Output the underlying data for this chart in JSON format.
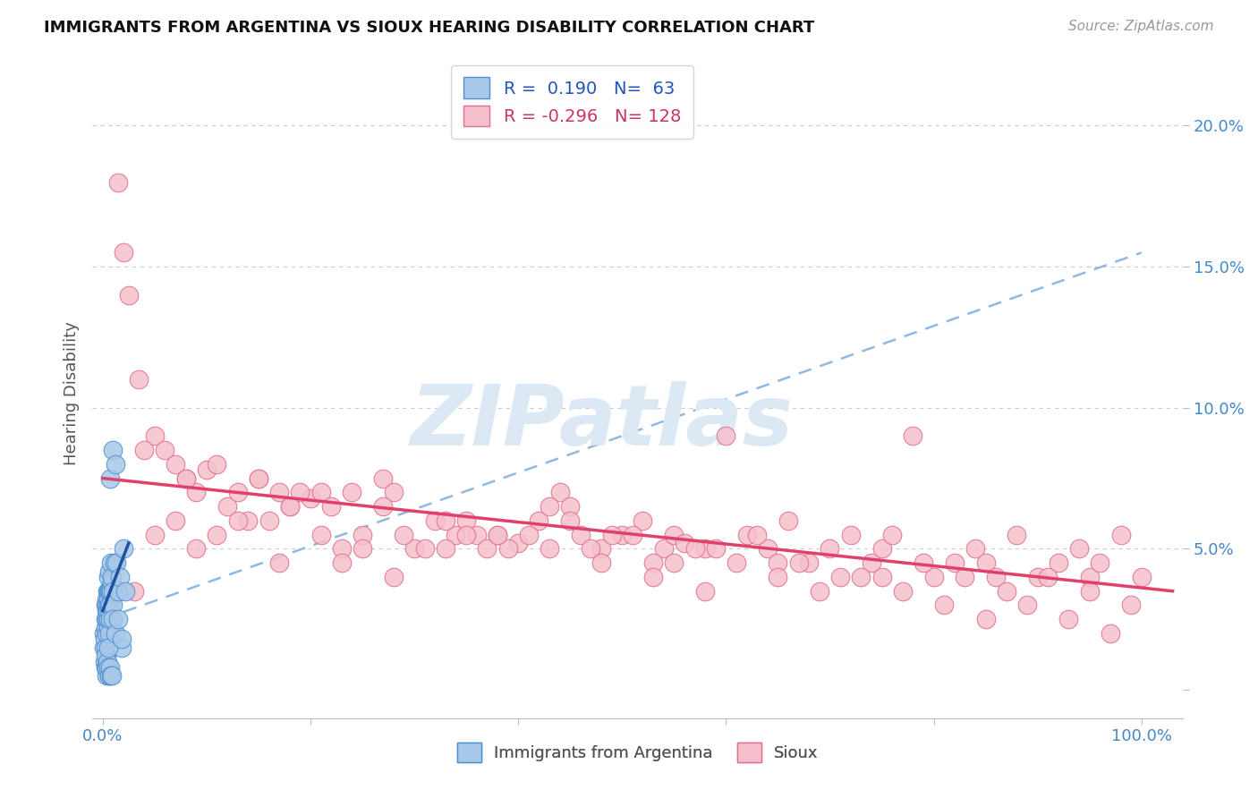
{
  "title": "IMMIGRANTS FROM ARGENTINA VS SIOUX HEARING DISABILITY CORRELATION CHART",
  "source": "Source: ZipAtlas.com",
  "ylabel_label": "Hearing Disability",
  "xlim": [
    -1,
    104
  ],
  "ylim": [
    -1,
    22
  ],
  "x_ticks": [
    0,
    20,
    40,
    60,
    80,
    100
  ],
  "x_tick_labels": [
    "0.0%",
    "",
    "",
    "",
    "",
    "100.0%"
  ],
  "y_ticks": [
    0,
    5,
    10,
    15,
    20
  ],
  "y_tick_labels": [
    "",
    "5.0%",
    "10.0%",
    "15.0%",
    "20.0%"
  ],
  "blue_color": "#A8C8E8",
  "blue_edge_color": "#5090D0",
  "pink_color": "#F5C0CC",
  "pink_edge_color": "#E07090",
  "blue_line_color": "#2050A0",
  "pink_line_color": "#E0406A",
  "blue_dashed_color": "#90B8E0",
  "grid_color": "#CCCCCC",
  "watermark": "ZIPatlas",
  "watermark_color": "#DDE8F5",
  "legend_r_blue": "R =  0.190",
  "legend_n_blue": "N=  63",
  "legend_r_pink": "R = -0.296",
  "legend_n_pink": "N= 128",
  "legend_label_blue": "Immigrants from Argentina",
  "legend_label_pink": "Sioux",
  "blue_x": [
    0.1,
    0.15,
    0.2,
    0.25,
    0.3,
    0.3,
    0.3,
    0.35,
    0.35,
    0.4,
    0.4,
    0.4,
    0.4,
    0.45,
    0.45,
    0.5,
    0.5,
    0.5,
    0.5,
    0.5,
    0.55,
    0.55,
    0.6,
    0.6,
    0.6,
    0.65,
    0.65,
    0.7,
    0.7,
    0.7,
    0.75,
    0.8,
    0.8,
    0.85,
    0.9,
    0.95,
    1.0,
    1.0,
    1.1,
    1.2,
    1.3,
    1.5,
    1.7,
    1.8,
    2.0,
    0.2,
    0.25,
    0.3,
    0.35,
    0.4,
    0.45,
    0.5,
    0.55,
    0.6,
    0.65,
    0.7,
    0.8,
    0.9,
    1.0,
    1.2,
    1.5,
    1.8,
    2.2
  ],
  "blue_y": [
    1.5,
    2.0,
    1.8,
    2.2,
    2.5,
    3.0,
    1.5,
    2.8,
    3.2,
    2.0,
    2.5,
    3.0,
    1.2,
    2.8,
    3.5,
    2.2,
    2.5,
    3.0,
    3.5,
    4.0,
    2.5,
    3.2,
    2.0,
    2.8,
    3.5,
    3.0,
    4.2,
    2.5,
    3.5,
    7.5,
    3.0,
    3.5,
    4.5,
    3.8,
    4.0,
    3.5,
    3.0,
    8.5,
    4.5,
    8.0,
    4.5,
    3.5,
    4.0,
    1.5,
    5.0,
    1.0,
    1.2,
    0.8,
    0.5,
    0.8,
    1.0,
    1.5,
    0.8,
    0.5,
    0.5,
    0.8,
    0.5,
    0.5,
    2.5,
    2.0,
    2.5,
    1.8,
    3.5
  ],
  "pink_x": [
    1.5,
    2.0,
    2.5,
    3.5,
    5.0,
    6.0,
    7.0,
    8.0,
    9.0,
    10.0,
    11.0,
    12.0,
    14.0,
    15.0,
    16.0,
    17.0,
    18.0,
    20.0,
    21.0,
    22.0,
    24.0,
    25.0,
    27.0,
    28.0,
    30.0,
    32.0,
    34.0,
    35.0,
    36.0,
    38.0,
    40.0,
    42.0,
    44.0,
    45.0,
    46.0,
    48.0,
    50.0,
    52.0,
    54.0,
    55.0,
    56.0,
    58.0,
    60.0,
    62.0,
    64.0,
    65.0,
    66.0,
    68.0,
    70.0,
    72.0,
    74.0,
    75.0,
    76.0,
    78.0,
    80.0,
    82.0,
    84.0,
    85.0,
    86.0,
    88.0,
    90.0,
    92.0,
    94.0,
    95.0,
    96.0,
    98.0,
    100.0,
    4.0,
    7.0,
    11.0,
    15.0,
    19.0,
    23.0,
    27.0,
    31.0,
    35.0,
    39.0,
    43.0,
    47.0,
    51.0,
    55.0,
    59.0,
    63.0,
    67.0,
    71.0,
    75.0,
    79.0,
    83.0,
    87.0,
    91.0,
    95.0,
    99.0,
    5.0,
    9.0,
    13.0,
    17.0,
    21.0,
    25.0,
    29.0,
    33.0,
    37.0,
    41.0,
    45.0,
    49.0,
    53.0,
    57.0,
    61.0,
    65.0,
    69.0,
    73.0,
    77.0,
    81.0,
    85.0,
    89.0,
    93.0,
    97.0,
    3.0,
    8.0,
    13.0,
    18.0,
    23.0,
    28.0,
    33.0,
    38.0,
    43.0,
    48.0,
    53.0,
    58.0
  ],
  "pink_y": [
    18.0,
    15.5,
    14.0,
    11.0,
    9.0,
    8.5,
    8.0,
    7.5,
    7.0,
    7.8,
    8.0,
    6.5,
    6.0,
    7.5,
    6.0,
    7.0,
    6.5,
    6.8,
    7.0,
    6.5,
    7.0,
    5.5,
    7.5,
    7.0,
    5.0,
    6.0,
    5.5,
    6.0,
    5.5,
    5.5,
    5.2,
    6.0,
    7.0,
    6.5,
    5.5,
    5.0,
    5.5,
    6.0,
    5.0,
    5.5,
    5.2,
    5.0,
    9.0,
    5.5,
    5.0,
    4.5,
    6.0,
    4.5,
    5.0,
    5.5,
    4.5,
    5.0,
    5.5,
    9.0,
    4.0,
    4.5,
    5.0,
    4.5,
    4.0,
    5.5,
    4.0,
    4.5,
    5.0,
    4.0,
    4.5,
    5.5,
    4.0,
    8.5,
    6.0,
    5.5,
    7.5,
    7.0,
    5.0,
    6.5,
    5.0,
    5.5,
    5.0,
    6.5,
    5.0,
    5.5,
    4.5,
    5.0,
    5.5,
    4.5,
    4.0,
    4.0,
    4.5,
    4.0,
    3.5,
    4.0,
    3.5,
    3.0,
    5.5,
    5.0,
    6.0,
    4.5,
    5.5,
    5.0,
    5.5,
    6.0,
    5.0,
    5.5,
    6.0,
    5.5,
    4.5,
    5.0,
    4.5,
    4.0,
    3.5,
    4.0,
    3.5,
    3.0,
    2.5,
    3.0,
    2.5,
    2.0,
    3.5,
    7.5,
    7.0,
    6.5,
    4.5,
    4.0,
    5.0,
    5.5,
    5.0,
    4.5,
    4.0,
    3.5
  ],
  "blue_line_x0": 0.0,
  "blue_line_y0": 2.8,
  "blue_line_x1": 2.5,
  "blue_line_y1": 5.2,
  "blue_dashed_x0": 0.0,
  "blue_dashed_y0": 2.5,
  "blue_dashed_x1": 100.0,
  "blue_dashed_y1": 15.5,
  "pink_line_x0": 0.0,
  "pink_line_y0": 7.5,
  "pink_line_x1": 103.0,
  "pink_line_y1": 3.5
}
